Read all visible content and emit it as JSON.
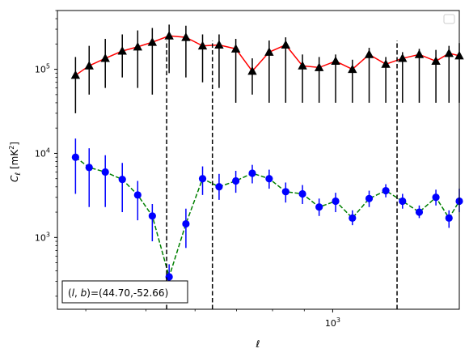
{
  "chart_data": {
    "type": "scatter",
    "title": "",
    "xlabel": "ℓ",
    "ylabel": "C",
    "ylabel_subscript": "ℓ",
    "ylabel_unit": "[mK",
    "ylabel_unit_sup": "2",
    "ylabel_unit_end": "]",
    "xscale": "log",
    "yscale": "log",
    "xlim": [
      360,
      1600
    ],
    "ylim": [
      140,
      500000
    ],
    "x_ticks": [
      {
        "value": 1000,
        "base": "10",
        "exp": "3"
      }
    ],
    "y_ticks": [
      {
        "value": 1000,
        "base": "10",
        "exp": "3"
      },
      {
        "value": 10000,
        "base": "10",
        "exp": "4"
      },
      {
        "value": 100000,
        "base": "10",
        "exp": "5"
      }
    ],
    "legend": {
      "placement": "top-right",
      "entries": []
    },
    "annotation": {
      "prefix": "(",
      "l": "l",
      "sep": ", ",
      "b": "b",
      "suffix": ")=(44.70,-52.66)"
    },
    "vlines": [
      {
        "x": 540,
        "style": "dashed",
        "color": "#000000"
      },
      {
        "x": 640,
        "style": "dashed",
        "color": "#000000"
      },
      {
        "x": 1270,
        "style": "dashed",
        "color": "#000000"
      }
    ],
    "series": [
      {
        "marker": "triangle",
        "marker_color": "#000000",
        "line_color": "#ff0000",
        "line_style": "solid",
        "x": [
          385,
          405,
          430,
          458,
          485,
          512,
          545,
          580,
          617,
          656,
          698,
          742,
          790,
          840,
          894,
          951,
          1011,
          1076,
          1145,
          1218,
          1296,
          1379,
          1467,
          1540,
          1600
        ],
        "y": [
          85000,
          110000,
          135000,
          165000,
          185000,
          210000,
          250000,
          240000,
          190000,
          195000,
          175000,
          95000,
          160000,
          195000,
          110000,
          105000,
          125000,
          100000,
          150000,
          115000,
          135000,
          150000,
          125000,
          155000,
          145000
        ],
        "yerr_low": [
          30000,
          50000,
          60000,
          80000,
          60000,
          50000,
          90000,
          80000,
          70000,
          60000,
          40000,
          50000,
          40000,
          40000,
          40000,
          40000,
          40000,
          40000,
          40000,
          40000,
          40000,
          40000,
          40000,
          40000,
          40000
        ],
        "yerr_high": [
          140000,
          190000,
          230000,
          260000,
          290000,
          310000,
          340000,
          330000,
          260000,
          260000,
          230000,
          135000,
          220000,
          240000,
          150000,
          140000,
          150000,
          130000,
          180000,
          140000,
          160000,
          175000,
          170000,
          190000,
          205000
        ]
      },
      {
        "marker": "circle",
        "marker_color": "#0000ff",
        "line_color": "#008000",
        "line_style": "dashed",
        "x": [
          385,
          405,
          430,
          458,
          485,
          512,
          545,
          580,
          617,
          656,
          698,
          742,
          790,
          840,
          894,
          951,
          1011,
          1076,
          1145,
          1218,
          1296,
          1379,
          1467,
          1540,
          1600
        ],
        "y": [
          9000,
          6800,
          6000,
          4900,
          3200,
          1800,
          340,
          1450,
          5000,
          4000,
          4700,
          5800,
          5000,
          3500,
          3300,
          2300,
          2700,
          1700,
          2900,
          3600,
          2700,
          2000,
          3000,
          1700,
          2700
        ],
        "yerr_low": [
          3300,
          2300,
          2300,
          2000,
          1600,
          900,
          200,
          750,
          3200,
          2800,
          3400,
          4400,
          3800,
          2600,
          2500,
          1800,
          2000,
          1400,
          2300,
          3000,
          2200,
          1700,
          2400,
          1300,
          2000
        ],
        "yerr_high": [
          15000,
          11500,
          9500,
          7700,
          4700,
          2500,
          480,
          2200,
          7000,
          5700,
          6200,
          7300,
          6400,
          4500,
          4200,
          2900,
          3400,
          2100,
          3600,
          4300,
          3300,
          2400,
          3700,
          2100,
          3800
        ]
      }
    ]
  }
}
